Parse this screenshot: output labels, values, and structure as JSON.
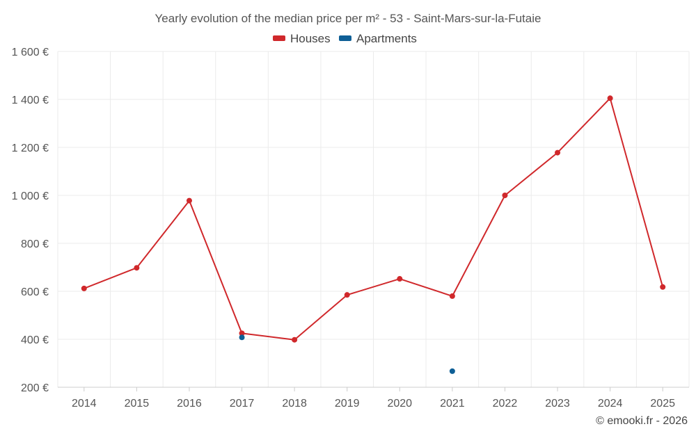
{
  "chart_data": {
    "type": "line",
    "title": "Yearly evolution of the median price per m² - 53 - Saint-Mars-sur-la-Futaie",
    "categories": [
      "2014",
      "2015",
      "2016",
      "2017",
      "2018",
      "2019",
      "2020",
      "2021",
      "2022",
      "2023",
      "2024",
      "2025"
    ],
    "series": [
      {
        "name": "Houses",
        "color": "#d0282b",
        "values": [
          612,
          698,
          978,
          425,
          398,
          585,
          652,
          580,
          1000,
          1178,
          1405,
          618
        ]
      },
      {
        "name": "Apartments",
        "color": "#0e5f96",
        "values": [
          null,
          null,
          null,
          408,
          null,
          null,
          null,
          267,
          null,
          null,
          null,
          null
        ]
      }
    ],
    "ylim": [
      200,
      1600
    ],
    "yticks": [
      200,
      400,
      600,
      800,
      1000,
      1200,
      1400,
      1600
    ],
    "ytick_labels": [
      "200 €",
      "400 €",
      "600 €",
      "800 €",
      "1 000 €",
      "1 200 €",
      "1 400 €",
      "1 600 €"
    ],
    "grid": true,
    "legend_position": "top-center",
    "xlabel": "",
    "ylabel": ""
  },
  "credit": "© emooki.fr - 2026"
}
